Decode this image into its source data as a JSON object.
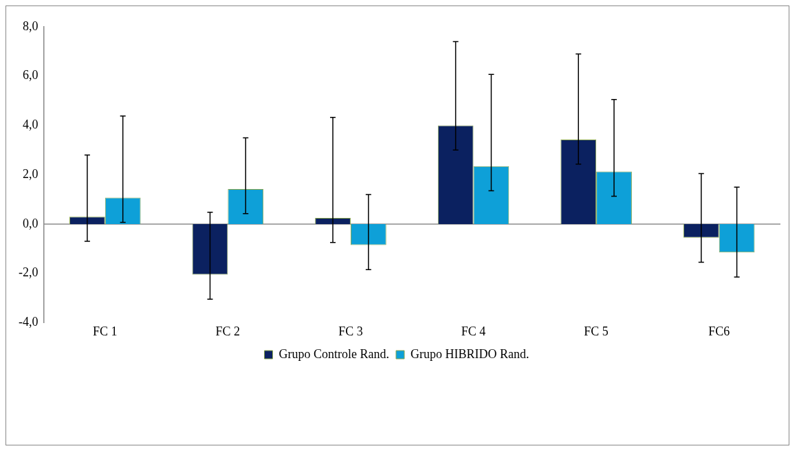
{
  "chart_data": {
    "type": "bar",
    "categories": [
      "FC 1",
      "FC 2",
      "FC 3",
      "FC 4",
      "FC 5",
      "FC6"
    ],
    "series": [
      {
        "name": "Grupo Controle Rand.",
        "color": "#0b2160",
        "values": [
          0.3,
          -2.05,
          0.25,
          4.0,
          3.43,
          -0.55
        ],
        "errors": [
          [
            -0.7,
            2.8
          ],
          [
            -3.05,
            0.48
          ],
          [
            -0.75,
            4.33
          ],
          [
            3.0,
            7.4
          ],
          [
            2.43,
            6.9
          ],
          [
            -1.55,
            2.05
          ]
        ]
      },
      {
        "name": "Grupo HIBRIDO Rand.",
        "color": "#0ea0d8",
        "values": [
          1.07,
          1.42,
          -0.85,
          2.35,
          2.13,
          -1.15
        ],
        "errors": [
          [
            0.07,
            4.38
          ],
          [
            0.42,
            3.5
          ],
          [
            -1.85,
            1.2
          ],
          [
            1.35,
            6.07
          ],
          [
            1.13,
            5.05
          ],
          [
            -2.15,
            1.5
          ]
        ]
      }
    ],
    "ylim": [
      -4,
      8
    ],
    "yticks": [
      {
        "value": -4,
        "label": "-4,0"
      },
      {
        "value": -2,
        "label": "-2,0"
      },
      {
        "value": 0,
        "label": "0,0"
      },
      {
        "value": 2,
        "label": "2,0"
      },
      {
        "value": 4,
        "label": "4,0"
      },
      {
        "value": 6,
        "label": "6,0"
      },
      {
        "value": 8,
        "label": "8,0"
      }
    ],
    "ref_lines": [
      {
        "axis": "y",
        "value": 0,
        "color": "#8c8c8c"
      }
    ],
    "grid": false,
    "legend": "bottom"
  }
}
